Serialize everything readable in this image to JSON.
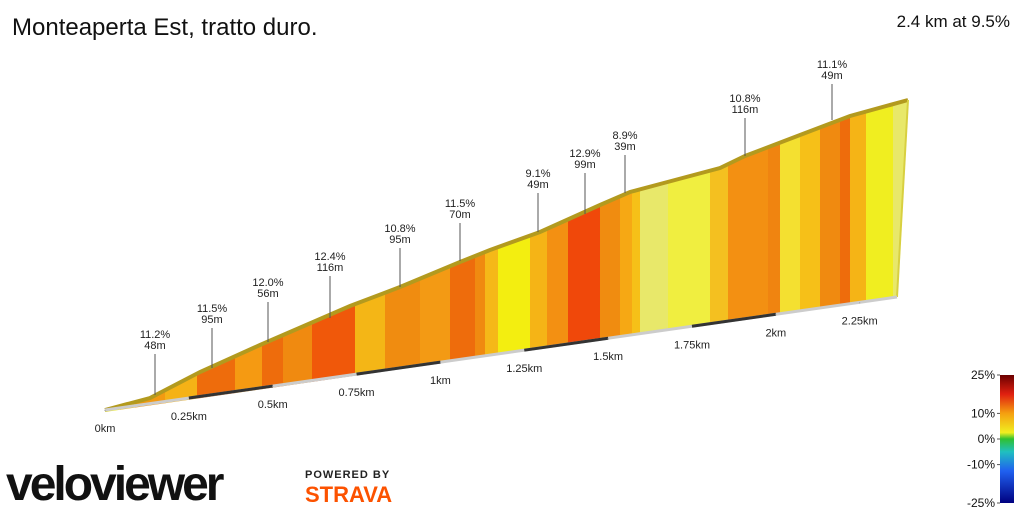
{
  "chart_data": {
    "type": "profile",
    "title": "Monteaperta Est, tratto duro.",
    "subtitle": "2.4 km at 9.5%",
    "xlim": [
      0,
      2.4
    ],
    "xticks": [
      {
        "value": 0,
        "label": "0km"
      },
      {
        "value": 0.25,
        "label": "0.25km"
      },
      {
        "value": 0.5,
        "label": "0.5km"
      },
      {
        "value": 0.75,
        "label": "0.75km"
      },
      {
        "value": 1,
        "label": "1km"
      },
      {
        "value": 1.25,
        "label": "1.25km"
      },
      {
        "value": 1.5,
        "label": "1.5km"
      },
      {
        "value": 1.75,
        "label": "1.75km"
      },
      {
        "value": 2,
        "label": "2km"
      },
      {
        "value": 2.25,
        "label": "2.25km"
      }
    ],
    "annotations": [
      [
        "11.2%",
        "48m"
      ],
      [
        "11.5%",
        "95m"
      ],
      [
        "12.0%",
        "56m"
      ],
      [
        "12.4%",
        "116m"
      ],
      [
        "10.8%",
        "95m"
      ],
      [
        "11.5%",
        "70m"
      ],
      [
        "9.1%",
        "49m"
      ],
      [
        "12.9%",
        "99m"
      ],
      [
        "8.9%",
        "39m"
      ],
      [
        "10.8%",
        "116m"
      ],
      [
        "11.1%",
        "49m"
      ]
    ],
    "colors": [
      "#f0ee2a",
      "#f4c020",
      "#f09a10",
      "#f39a12",
      "#f5b216",
      "#ee6c0c",
      "#f59a12",
      "#ee6c0c",
      "#f08a10",
      "#f0580a",
      "#f4b616",
      "#f08c10",
      "#f39a14",
      "#ee6c0c",
      "#f08a10",
      "#f5b818",
      "#f3ee10",
      "#f5b416",
      "#f39012",
      "#f0480a",
      "#f08c10",
      "#f6a814",
      "#f6c018",
      "#e8e86a",
      "#f0ee40",
      "#f4c020",
      "#f39012",
      "#f08410",
      "#f4e030",
      "#f6c018",
      "#f08a10",
      "#ee6c0c",
      "#f5b416",
      "#f0ee20",
      "#e8e86a"
    ],
    "legend": {
      "ticks": [
        {
          "value": 25,
          "label": "25%"
        },
        {
          "value": 10,
          "label": "10%"
        },
        {
          "value": 0,
          "label": "0%"
        },
        {
          "value": -10,
          "label": "-10%"
        },
        {
          "value": -25,
          "label": "-25%"
        }
      ]
    },
    "branding": {
      "logo": "veloviewer",
      "powered": "POWERED BY",
      "strava": "STRAVA"
    }
  }
}
